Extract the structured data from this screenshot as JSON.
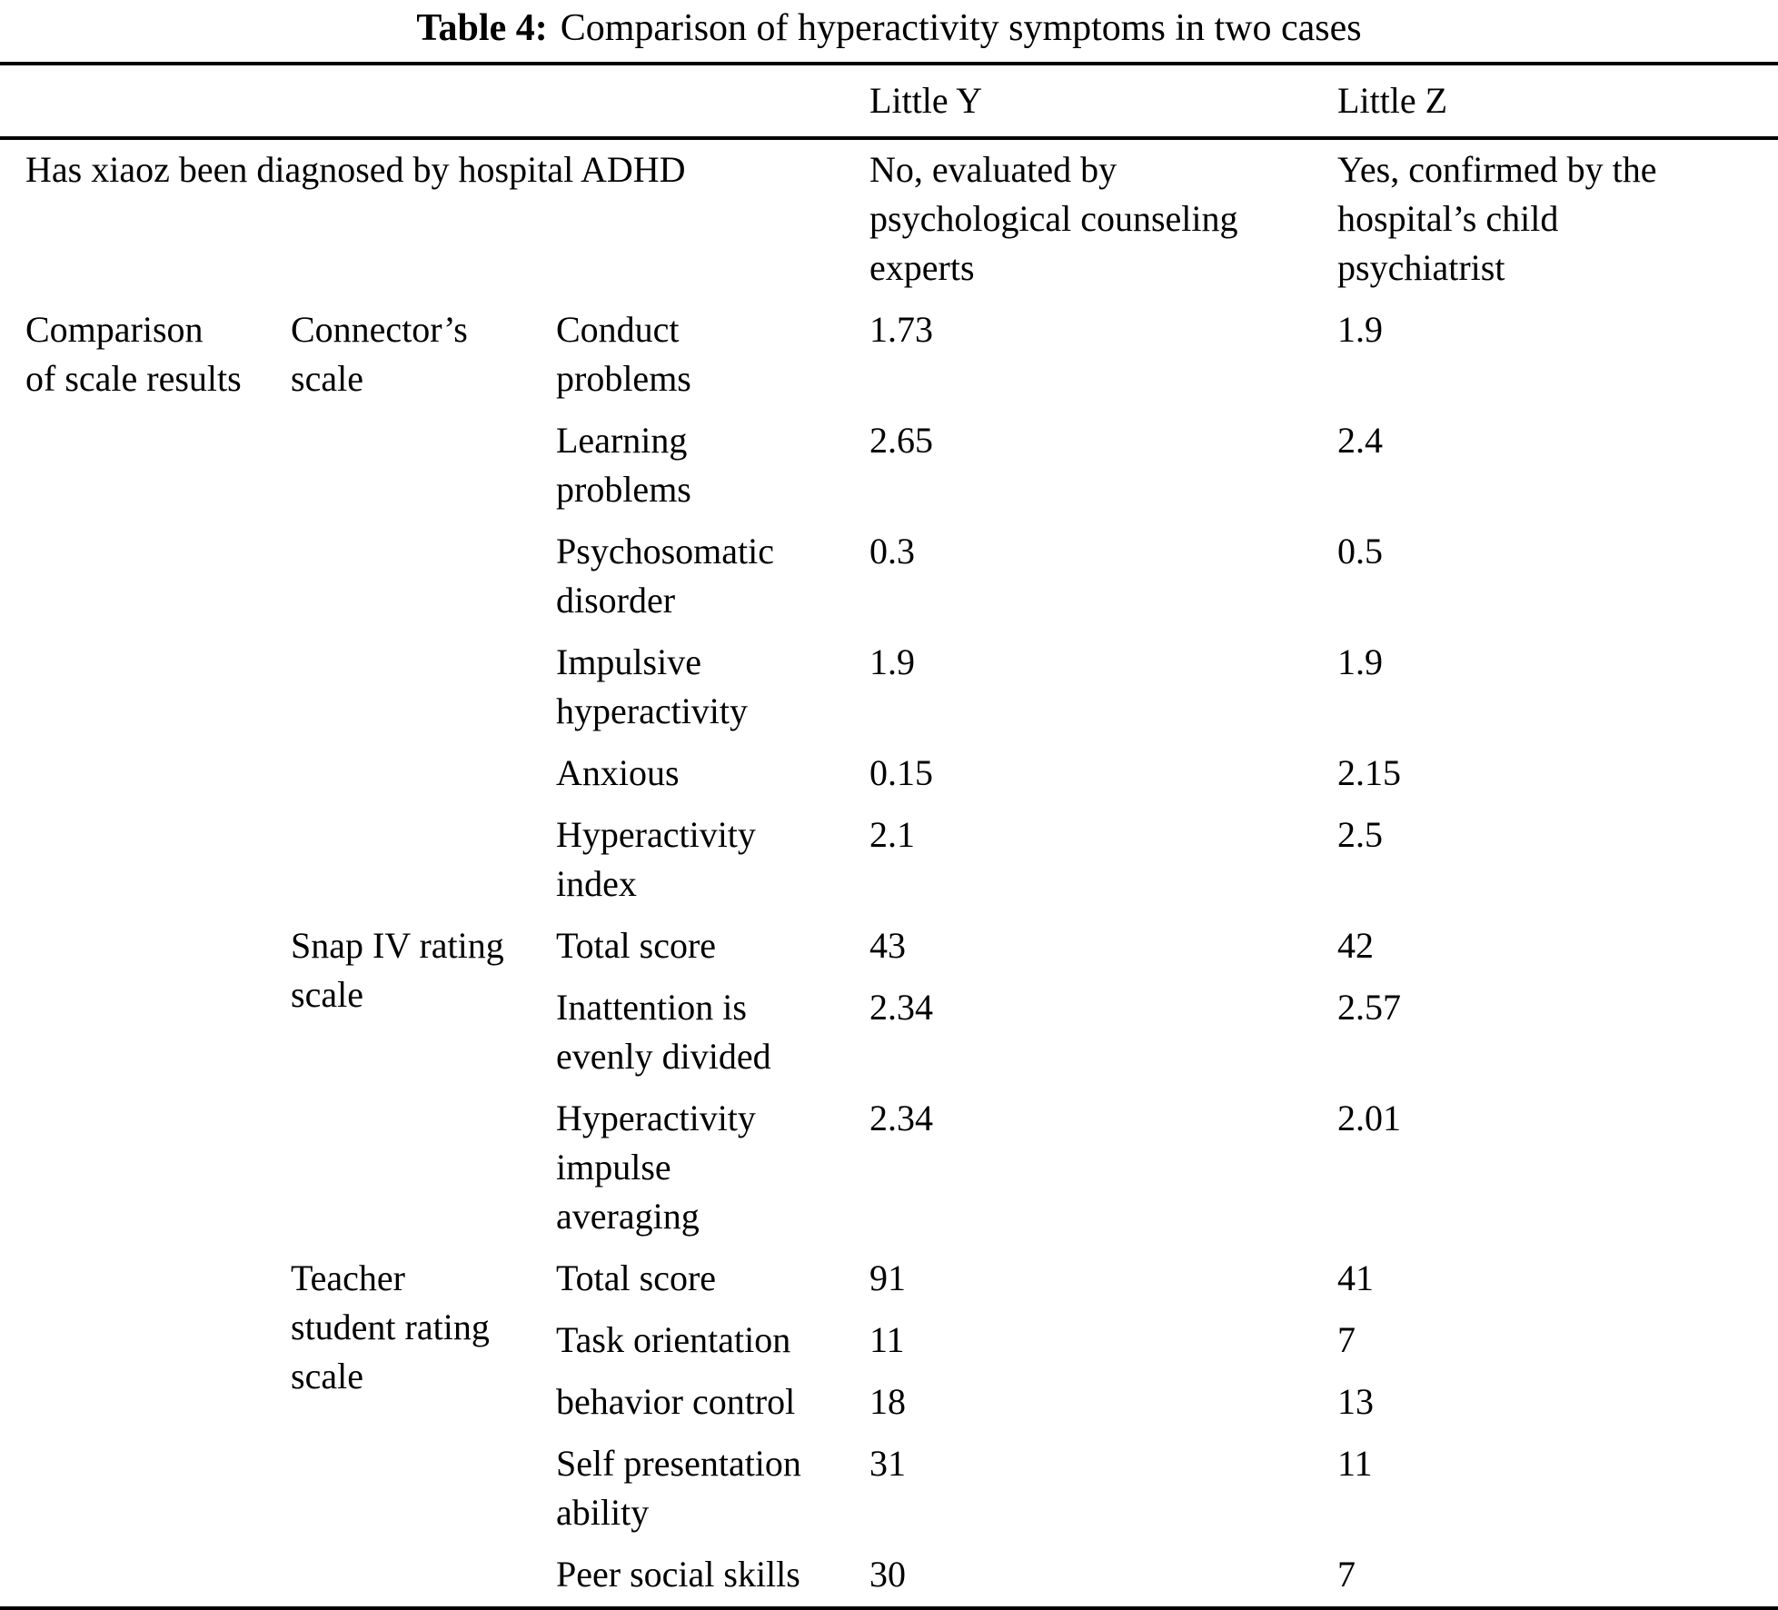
{
  "title": {
    "label": "Table 4:",
    "text": "Comparison of hyperactivity symptoms in two cases"
  },
  "header": {
    "little_y": "Little Y",
    "little_z": "Little Z"
  },
  "diagnosis": {
    "question": "Has xiaoz been diagnosed by hospital ADHD",
    "little_y": "No, evaluated by\npsychological counseling\nexperts",
    "little_z": "Yes, confirmed by the\nhospital’s child\npsychiatrist"
  },
  "comparison": {
    "label": "Comparison\nof scale results",
    "scales": [
      {
        "name": "Connector’s\nscale",
        "items": [
          {
            "label": "Conduct\nproblems",
            "little_y": "1.73",
            "little_z": "1.9"
          },
          {
            "label": "Learning\nproblems",
            "little_y": "2.65",
            "little_z": "2.4"
          },
          {
            "label": "Psychosomatic\ndisorder",
            "little_y": "0.3",
            "little_z": "0.5"
          },
          {
            "label": "Impulsive\nhyperactivity",
            "little_y": "1.9",
            "little_z": "1.9"
          },
          {
            "label": "Anxious",
            "little_y": "0.15",
            "little_z": "2.15"
          },
          {
            "label": "Hyperactivity\nindex",
            "little_y": "2.1",
            "little_z": "2.5"
          }
        ]
      },
      {
        "name": "Snap IV rating\nscale",
        "items": [
          {
            "label": "Total score",
            "little_y": "43",
            "little_z": "42"
          },
          {
            "label": "Inattention is\nevenly divided",
            "little_y": "2.34",
            "little_z": "2.57"
          },
          {
            "label": "Hyperactivity\nimpulse\naveraging",
            "little_y": "2.34",
            "little_z": "2.01"
          }
        ]
      },
      {
        "name": "Teacher\nstudent rating\nscale",
        "items": [
          {
            "label": "Total score",
            "little_y": "91",
            "little_z": "41"
          },
          {
            "label": "Task orientation",
            "little_y": "11",
            "little_z": "7"
          },
          {
            "label": "behavior control",
            "little_y": "18",
            "little_z": "13"
          },
          {
            "label": "Self presentation\nability",
            "little_y": "31",
            "little_z": "11"
          },
          {
            "label": "Peer social skills",
            "little_y": "30",
            "little_z": "7"
          }
        ]
      }
    ]
  }
}
